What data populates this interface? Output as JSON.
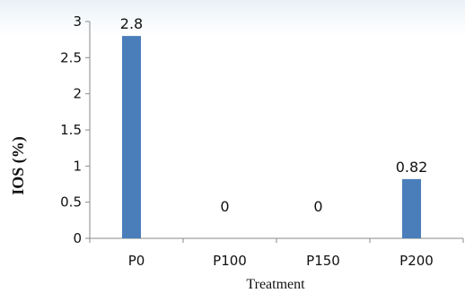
{
  "chart_data": {
    "type": "bar",
    "categories": [
      "P0",
      "P100",
      "P150",
      "P200"
    ],
    "values": [
      2.8,
      0,
      0,
      0.82
    ],
    "data_labels": [
      "2.8",
      "0",
      "0",
      "0.82"
    ],
    "yticks": [
      "0",
      "0.5",
      "1",
      "1.5",
      "2",
      "2.5",
      "3"
    ],
    "ylim": [
      0,
      3
    ],
    "xlabel": "Treatment",
    "ylabel": "IOS (%)",
    "grid": false,
    "bar_color": "#4a7ebb"
  }
}
